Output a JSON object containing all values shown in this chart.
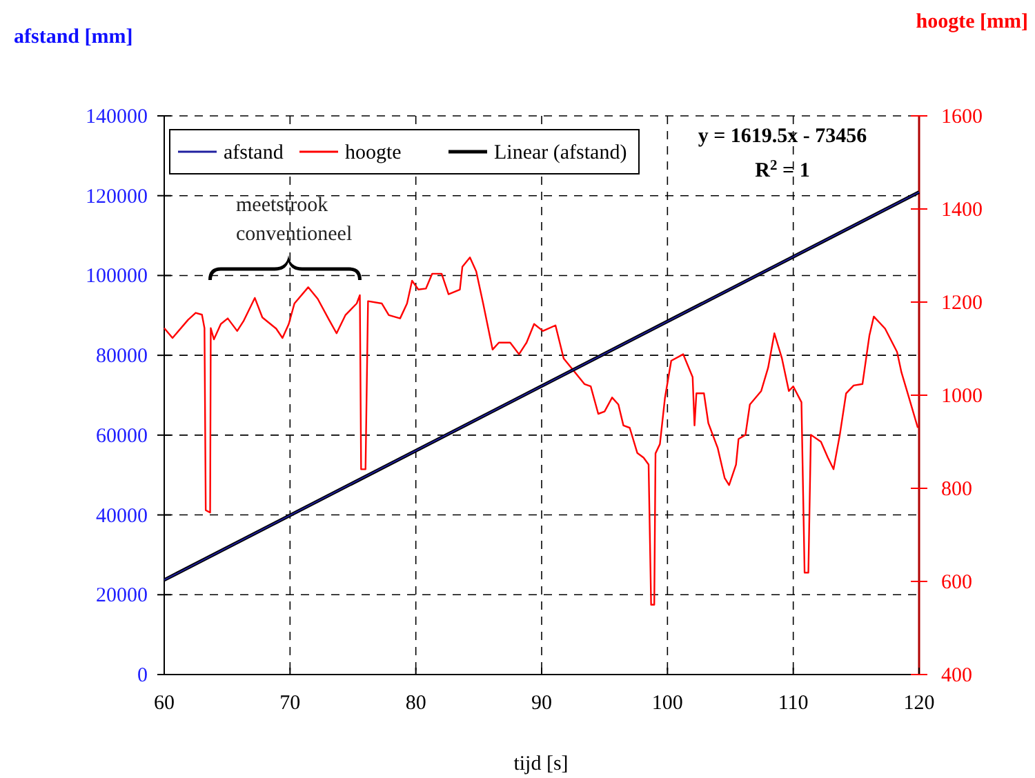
{
  "chart_data": {
    "type": "line",
    "xlabel": "tijd [s]",
    "ylabel": "afstand [mm]",
    "y2label": "hoogte [mm]",
    "xlim": [
      60,
      120
    ],
    "xticks": [
      60,
      70,
      80,
      90,
      100,
      110,
      120
    ],
    "ylim": [
      0,
      140000
    ],
    "yticks": [
      0,
      20000,
      40000,
      60000,
      80000,
      100000,
      120000,
      140000
    ],
    "y2lim": [
      400,
      1600
    ],
    "y2ticks": [
      400,
      600,
      800,
      1000,
      1200,
      1400,
      1600
    ],
    "grid": true,
    "legend": "top left",
    "line_style": "solid",
    "marker": "none",
    "annotations": [
      "y = 1619.5x - 73456",
      "R$^{2}$ = 1",
      "meetstrook conventioneel"
    ],
    "series": [
      {
        "name": "afstand",
        "color": "#2020a0",
        "x": [
          60,
          90,
          120
        ],
        "values": [
          23700,
          72300,
          120900
        ]
      },
      {
        "name": "hoogte",
        "color": "#ff0000",
        "axis": "y2",
        "x": [
          60,
          60.66,
          61.9,
          62.5,
          63.0,
          63.2,
          63.3,
          63.65,
          63.7,
          63.95,
          64.5,
          65.05,
          65.8,
          66.3,
          67.2,
          67.8,
          68.9,
          69.4,
          69.9,
          70.35,
          71.45,
          72.2,
          73.1,
          73.7,
          74.4,
          75.3,
          75.55,
          75.65,
          76.0,
          76.2,
          77.3,
          77.85,
          78.75,
          79.3,
          79.7,
          80.2,
          80.8,
          81.3,
          82.05,
          82.6,
          83.5,
          83.7,
          84.3,
          84.8,
          85.35,
          86.1,
          86.6,
          87.5,
          88.2,
          88.8,
          89.4,
          90.1,
          91.1,
          91.75,
          92.5,
          93.4,
          93.9,
          94.5,
          95.0,
          95.6,
          96.1,
          96.5,
          97.0,
          97.6,
          98.1,
          98.5,
          98.7,
          98.95,
          99.05,
          99.4,
          99.8,
          100.3,
          101.25,
          102.0,
          102.15,
          102.3,
          102.9,
          103.25,
          104.0,
          104.55,
          104.9,
          105.45,
          105.65,
          106.2,
          106.55,
          107.45,
          108.0,
          108.5,
          109.1,
          109.65,
          110.0,
          110.65,
          110.9,
          111.2,
          111.4,
          112.2,
          112.75,
          113.2,
          113.7,
          114.2,
          114.8,
          115.5,
          116.05,
          116.4,
          117.3,
          118.25,
          118.6,
          119.15,
          119.9
        ],
        "values": [
          1144,
          1123,
          1162,
          1177,
          1173,
          1144,
          753,
          748,
          1144,
          1120,
          1153,
          1165,
          1138,
          1159,
          1209,
          1167,
          1143,
          1123,
          1153,
          1197,
          1232,
          1207,
          1162,
          1133,
          1172,
          1197,
          1215,
          841,
          841,
          1202,
          1197,
          1172,
          1165,
          1197,
          1246,
          1227,
          1229,
          1261,
          1261,
          1217,
          1227,
          1276,
          1296,
          1266,
          1197,
          1098,
          1113,
          1113,
          1088,
          1113,
          1153,
          1138,
          1150,
          1079,
          1054,
          1024,
          1019,
          960,
          965,
          995,
          980,
          935,
          930,
          876,
          866,
          851,
          550,
          550,
          875,
          895,
          994,
          1074,
          1088,
          1039,
          935,
          1004,
          1004,
          940,
          886,
          822,
          807,
          851,
          906,
          915,
          980,
          1009,
          1059,
          1133,
          1079,
          1009,
          1019,
          985,
          619,
          619,
          915,
          900,
          866,
          841,
          915,
          1004,
          1021,
          1024,
          1128,
          1169,
          1143,
          1093,
          1049,
          999,
          930
        ]
      },
      {
        "name": "Linear (afstand)",
        "color": "#000000",
        "type": "line",
        "x": [
          60,
          120
        ],
        "values": [
          23700,
          120900
        ]
      }
    ]
  }
}
